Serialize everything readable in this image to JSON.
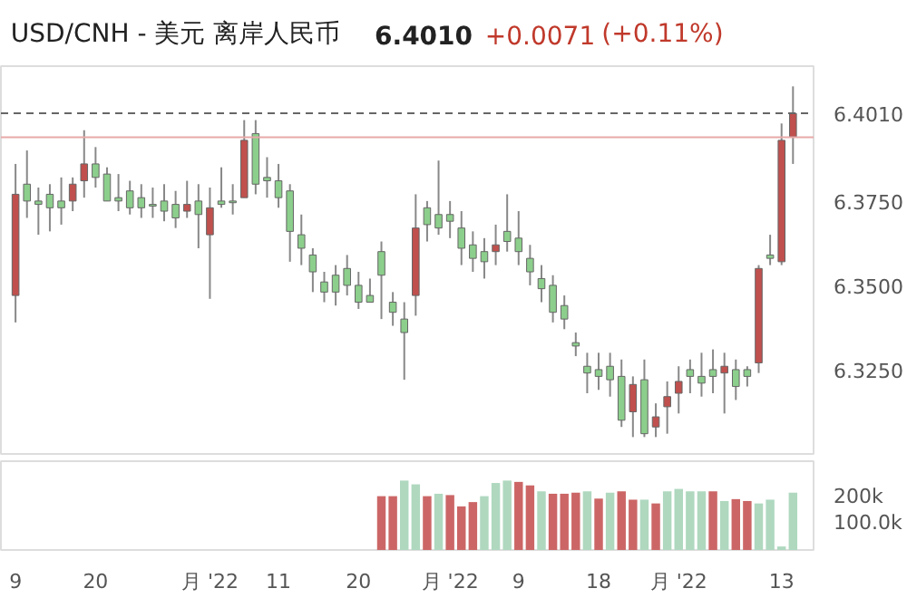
{
  "chart_data": [
    {
      "type": "candlestick",
      "title": "USD/CNH - 美元 离岸人民币",
      "annotations": [
        "6.4010",
        "+0.0071",
        "(+0.11%)"
      ],
      "ohlc": [
        [
          6.347,
          6.386,
          6.339,
          6.377
        ],
        [
          6.38,
          6.39,
          6.37,
          6.375
        ],
        [
          6.375,
          6.379,
          6.365,
          6.374
        ],
        [
          6.377,
          6.38,
          6.366,
          6.373
        ],
        [
          6.375,
          6.382,
          6.368,
          6.373
        ],
        [
          6.375,
          6.382,
          6.372,
          6.38
        ],
        [
          6.381,
          6.396,
          6.376,
          6.386
        ],
        [
          6.386,
          6.391,
          6.379,
          6.382
        ],
        [
          6.383,
          6.385,
          6.375,
          6.375
        ],
        [
          6.376,
          6.383,
          6.372,
          6.375
        ],
        [
          6.378,
          6.381,
          6.371,
          6.373
        ],
        [
          6.376,
          6.38,
          6.37,
          6.373
        ],
        [
          6.374,
          6.379,
          6.37,
          6.3735
        ],
        [
          6.375,
          6.38,
          6.369,
          6.372
        ],
        [
          6.374,
          6.378,
          6.367,
          6.37
        ],
        [
          6.372,
          6.381,
          6.37,
          6.374
        ],
        [
          6.375,
          6.38,
          6.361,
          6.371
        ],
        [
          6.365,
          6.379,
          6.346,
          6.373
        ],
        [
          6.375,
          6.385,
          6.373,
          6.374
        ],
        [
          6.375,
          6.38,
          6.371,
          6.3745
        ],
        [
          6.376,
          6.399,
          6.376,
          6.393
        ],
        [
          6.395,
          6.399,
          6.377,
          6.38
        ],
        [
          6.382,
          6.388,
          6.376,
          6.381
        ],
        [
          6.381,
          6.386,
          6.373,
          6.376
        ],
        [
          6.378,
          6.38,
          6.357,
          6.366
        ],
        [
          6.365,
          6.371,
          6.356,
          6.361
        ],
        [
          6.359,
          6.361,
          6.348,
          6.354
        ],
        [
          6.351,
          6.354,
          6.345,
          6.348
        ],
        [
          6.353,
          6.356,
          6.344,
          6.348
        ],
        [
          6.355,
          6.359,
          6.347,
          6.35
        ],
        [
          6.35,
          6.354,
          6.343,
          6.345
        ],
        [
          6.347,
          6.352,
          6.345,
          6.345
        ],
        [
          6.36,
          6.363,
          6.34,
          6.353
        ],
        [
          6.345,
          6.348,
          6.338,
          6.342
        ],
        [
          6.34,
          6.345,
          6.322,
          6.336
        ],
        [
          6.347,
          6.377,
          6.341,
          6.367
        ],
        [
          6.373,
          6.375,
          6.363,
          6.368
        ],
        [
          6.371,
          6.387,
          6.365,
          6.367
        ],
        [
          6.371,
          6.375,
          6.364,
          6.369
        ],
        [
          6.367,
          6.372,
          6.356,
          6.361
        ],
        [
          6.362,
          6.366,
          6.354,
          6.358
        ],
        [
          6.36,
          6.364,
          6.352,
          6.357
        ],
        [
          6.36,
          6.368,
          6.356,
          6.362
        ],
        [
          6.366,
          6.377,
          6.36,
          6.363
        ],
        [
          6.364,
          6.372,
          6.356,
          6.36
        ],
        [
          6.358,
          6.362,
          6.35,
          6.354
        ],
        [
          6.352,
          6.356,
          6.345,
          6.349
        ],
        [
          6.35,
          6.353,
          6.339,
          6.342
        ],
        [
          6.344,
          6.347,
          6.337,
          6.34
        ],
        [
          6.333,
          6.336,
          6.329,
          6.332
        ],
        [
          6.326,
          6.33,
          6.318,
          6.324
        ],
        [
          6.325,
          6.33,
          6.319,
          6.323
        ],
        [
          6.326,
          6.33,
          6.317,
          6.322
        ],
        [
          6.323,
          6.328,
          6.308,
          6.31
        ],
        [
          6.3125,
          6.323,
          6.305,
          6.3206
        ],
        [
          6.322,
          6.328,
          6.305,
          6.306
        ],
        [
          6.308,
          6.315,
          6.305,
          6.311
        ],
        [
          6.314,
          6.3215,
          6.306,
          6.317
        ],
        [
          6.318,
          6.326,
          6.312,
          6.3215
        ],
        [
          6.325,
          6.328,
          6.318,
          6.323
        ],
        [
          6.323,
          6.33,
          6.317,
          6.321
        ],
        [
          6.325,
          6.331,
          6.318,
          6.323
        ],
        [
          6.324,
          6.33,
          6.312,
          6.326
        ],
        [
          6.325,
          6.328,
          6.316,
          6.32
        ],
        [
          6.325,
          6.326,
          6.32,
          6.323
        ],
        [
          6.327,
          6.356,
          6.324,
          6.355
        ],
        [
          6.359,
          6.365,
          6.356,
          6.358
        ],
        [
          6.357,
          6.398,
          6.356,
          6.393
        ],
        [
          6.394,
          6.409,
          6.386,
          6.401
        ]
      ],
      "colors": [
        "#c0504d",
        "#8ccf8c",
        "#8ccf8c",
        "#8ccf8c",
        "#8ccf8c",
        "#c0504d",
        "#c0504d",
        "#8ccf8c",
        "#8ccf8c",
        "#8ccf8c",
        "#8ccf8c",
        "#8ccf8c",
        "#8ccf8c",
        "#8ccf8c",
        "#8ccf8c",
        "#c0504d",
        "#8ccf8c",
        "#c0504d",
        "#8ccf8c",
        "#8ccf8c",
        "#c0504d",
        "#8ccf8c",
        "#8ccf8c",
        "#8ccf8c",
        "#8ccf8c",
        "#8ccf8c",
        "#8ccf8c",
        "#8ccf8c",
        "#8ccf8c",
        "#8ccf8c",
        "#8ccf8c",
        "#8ccf8c",
        "#8ccf8c",
        "#8ccf8c",
        "#8ccf8c",
        "#c0504d",
        "#8ccf8c",
        "#8ccf8c",
        "#8ccf8c",
        "#8ccf8c",
        "#8ccf8c",
        "#8ccf8c",
        "#c0504d",
        "#8ccf8c",
        "#8ccf8c",
        "#8ccf8c",
        "#8ccf8c",
        "#8ccf8c",
        "#8ccf8c",
        "#8ccf8c",
        "#8ccf8c",
        "#8ccf8c",
        "#8ccf8c",
        "#8ccf8c",
        "#c0504d",
        "#8ccf8c",
        "#c0504d",
        "#c0504d",
        "#c0504d",
        "#8ccf8c",
        "#8ccf8c",
        "#8ccf8c",
        "#c0504d",
        "#8ccf8c",
        "#8ccf8c",
        "#c0504d",
        "#8ccf8c",
        "#c0504d",
        "#c0504d"
      ],
      "ylim": [
        6.3,
        6.415
      ],
      "yticks": [
        {
          "value": 6.325,
          "label": "6.3250"
        },
        {
          "value": 6.35,
          "label": "6.3500"
        },
        {
          "value": 6.375,
          "label": "6.3750"
        }
      ],
      "ref_lines": [
        {
          "axis": "y",
          "value": 6.401,
          "label": "6.4010",
          "line_style": "dashed",
          "color": "#666666"
        },
        {
          "axis": "y",
          "value": 6.3939,
          "label": null,
          "line_style": "solid",
          "color": "#e8a8a8"
        }
      ],
      "tick_labels": "y"
    },
    {
      "type": "bar",
      "categories": [
        "9",
        null,
        null,
        null,
        null,
        null,
        null,
        "20",
        null,
        null,
        null,
        null,
        null,
        null,
        null,
        null,
        null,
        "月 '22",
        null,
        null,
        null,
        null,
        null,
        "11",
        null,
        null,
        null,
        null,
        null,
        null,
        "20",
        null,
        null,
        null,
        null,
        null,
        null,
        null,
        "月 '22",
        null,
        null,
        null,
        null,
        null,
        "9",
        null,
        null,
        null,
        null,
        null,
        null,
        "18",
        null,
        null,
        null,
        null,
        null,
        null,
        "月 '22",
        null,
        null,
        null,
        null,
        null,
        null,
        null,
        null,
        "13",
        null
      ],
      "values": [
        null,
        null,
        null,
        null,
        null,
        null,
        null,
        null,
        null,
        null,
        null,
        null,
        null,
        null,
        null,
        null,
        null,
        null,
        null,
        null,
        null,
        null,
        null,
        null,
        null,
        null,
        null,
        null,
        null,
        null,
        null,
        null,
        200000,
        200000,
        258000,
        244000,
        200000,
        209000,
        204000,
        162000,
        178000,
        200000,
        249000,
        258000,
        253000,
        240000,
        218000,
        209000,
        209000,
        213000,
        218000,
        191000,
        213000,
        218000,
        187000,
        187000,
        173000,
        218000,
        227000,
        218000,
        218000,
        218000,
        182000,
        189000,
        182000,
        173000,
        187000,
        13000,
        213000
      ],
      "colors": [
        "#cc6666",
        "#cc6666",
        "#cc6666",
        "#cc6666",
        "#cc6666",
        "#cc6666",
        "#cc6666",
        "#cc6666",
        "#cc6666",
        "#cc6666",
        "#cc6666",
        "#cc6666",
        "#cc6666",
        "#cc6666",
        "#cc6666",
        "#cc6666",
        "#cc6666",
        "#cc6666",
        "#cc6666",
        "#cc6666",
        "#cc6666",
        "#cc6666",
        "#cc6666",
        "#cc6666",
        "#cc6666",
        "#cc6666",
        "#cc6666",
        "#cc6666",
        "#cc6666",
        "#cc6666",
        "#cc6666",
        "#cc6666",
        "#cc6666",
        "#cc6666",
        "#afd8bf",
        "#afd8bf",
        "#cc6666",
        "#afd8bf",
        "#cc6666",
        "#cc6666",
        "#cc6666",
        "#afd8bf",
        "#afd8bf",
        "#afd8bf",
        "#cc6666",
        "#cc6666",
        "#afd8bf",
        "#cc6666",
        "#cc6666",
        "#cc6666",
        "#afd8bf",
        "#cc6666",
        "#afd8bf",
        "#cc6666",
        "#cc6666",
        "#afd8bf",
        "#cc6666",
        "#afd8bf",
        "#afd8bf",
        "#afd8bf",
        "#afd8bf",
        "#cc6666",
        "#afd8bf",
        "#cc6666",
        "#cc6666",
        "#afd8bf",
        "#afd8bf",
        "#afd8bf",
        "#afd8bf"
      ],
      "ylim": [
        0,
        330000
      ],
      "yticks": [
        {
          "value": 100000,
          "label": "100.0k"
        },
        {
          "value": 200000,
          "label": "200k"
        }
      ]
    }
  ]
}
